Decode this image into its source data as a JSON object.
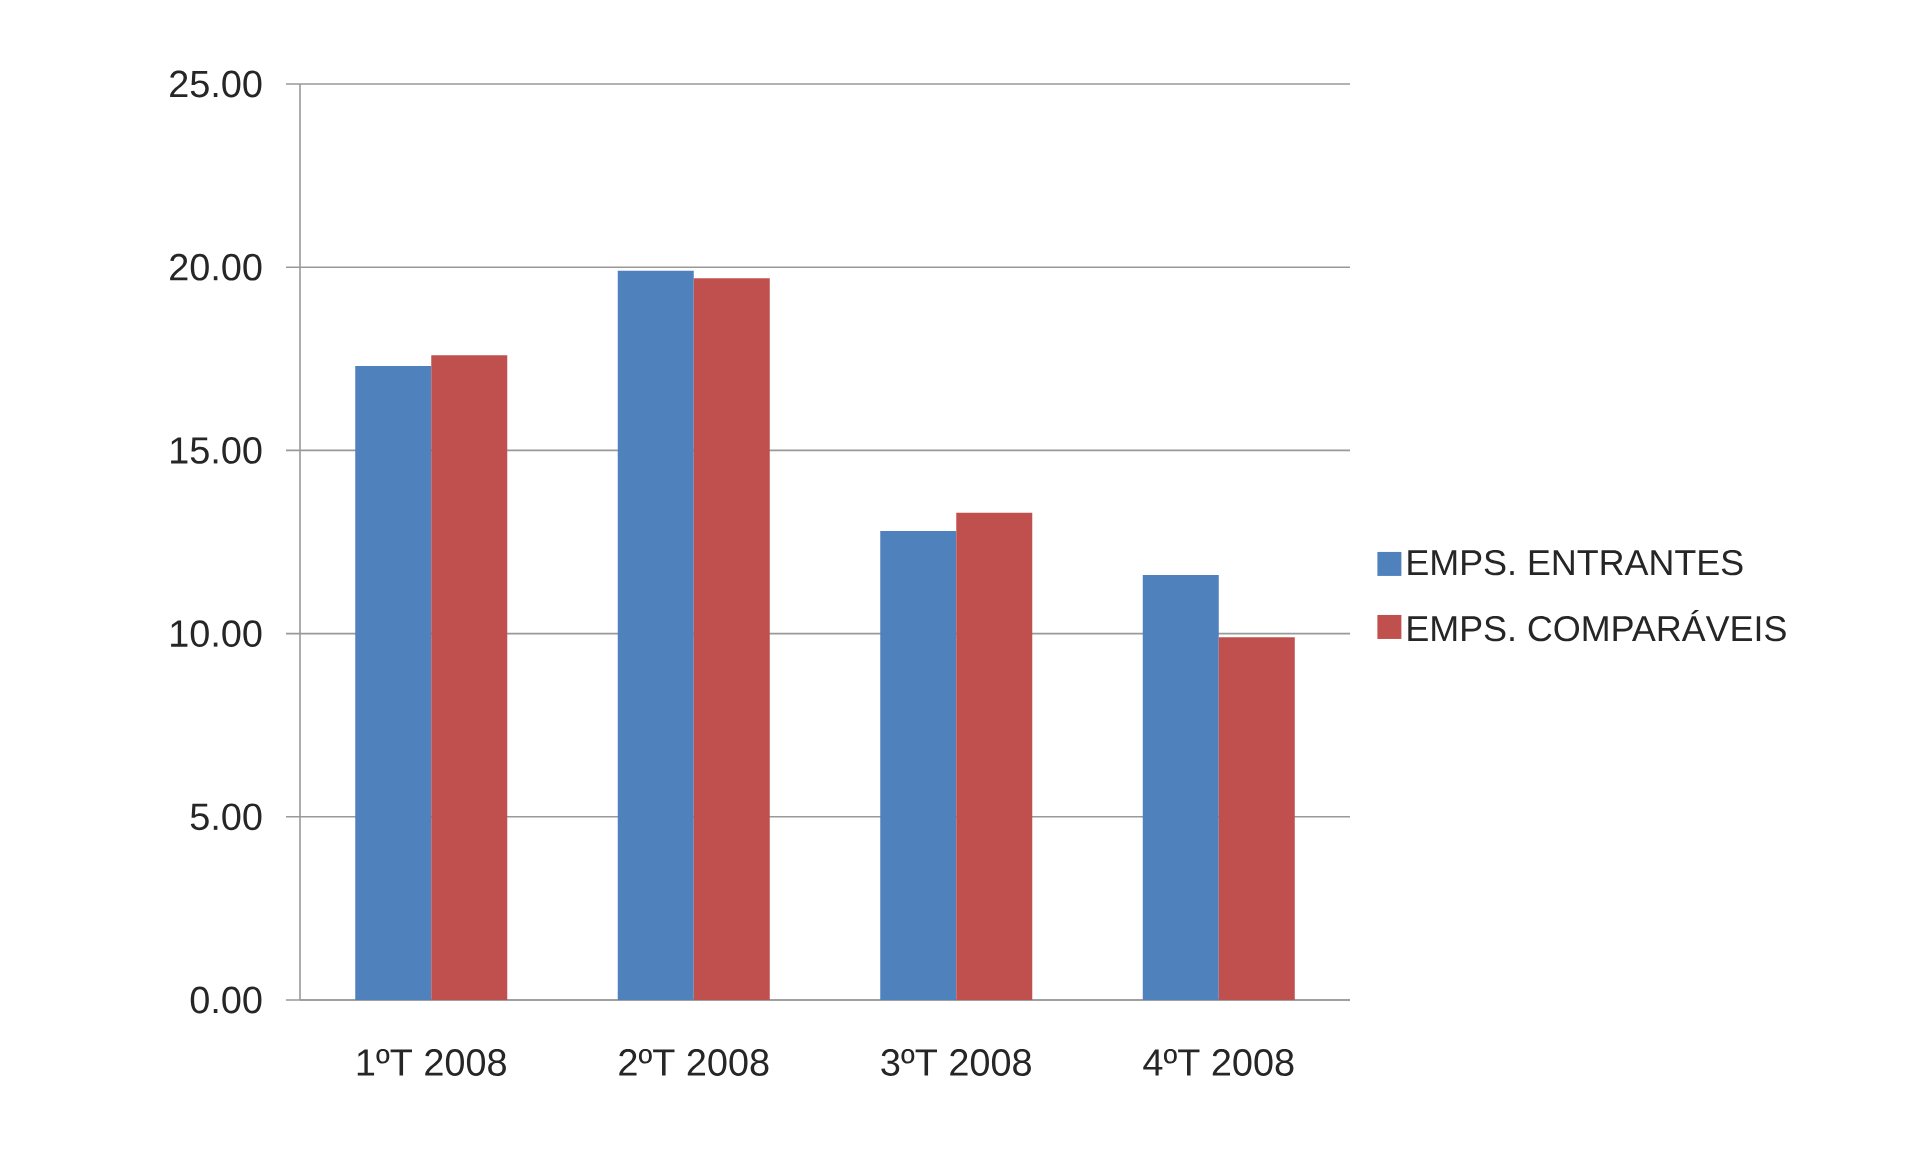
{
  "chart_data": {
    "type": "bar",
    "categories": [
      "1ºT 2008",
      "2ºT 2008",
      "3ºT 2008",
      "4ºT 2008"
    ],
    "series": [
      {
        "name": "EMPS. ENTRANTES",
        "color": "#4f81bd",
        "values": [
          17.3,
          19.9,
          12.8,
          11.6
        ]
      },
      {
        "name": "EMPS. COMPARÁVEIS",
        "color": "#c0504d",
        "values": [
          17.6,
          19.7,
          13.3,
          9.9
        ]
      }
    ],
    "ylim": [
      0,
      25
    ],
    "yticks": [
      {
        "value": 0,
        "label": "0.00"
      },
      {
        "value": 5,
        "label": "5.00"
      },
      {
        "value": 10,
        "label": "10.00"
      },
      {
        "value": 15,
        "label": "15.00"
      },
      {
        "value": 20,
        "label": "20.00"
      },
      {
        "value": 25,
        "label": "25.00"
      }
    ],
    "grid": "y",
    "legend": "right"
  }
}
